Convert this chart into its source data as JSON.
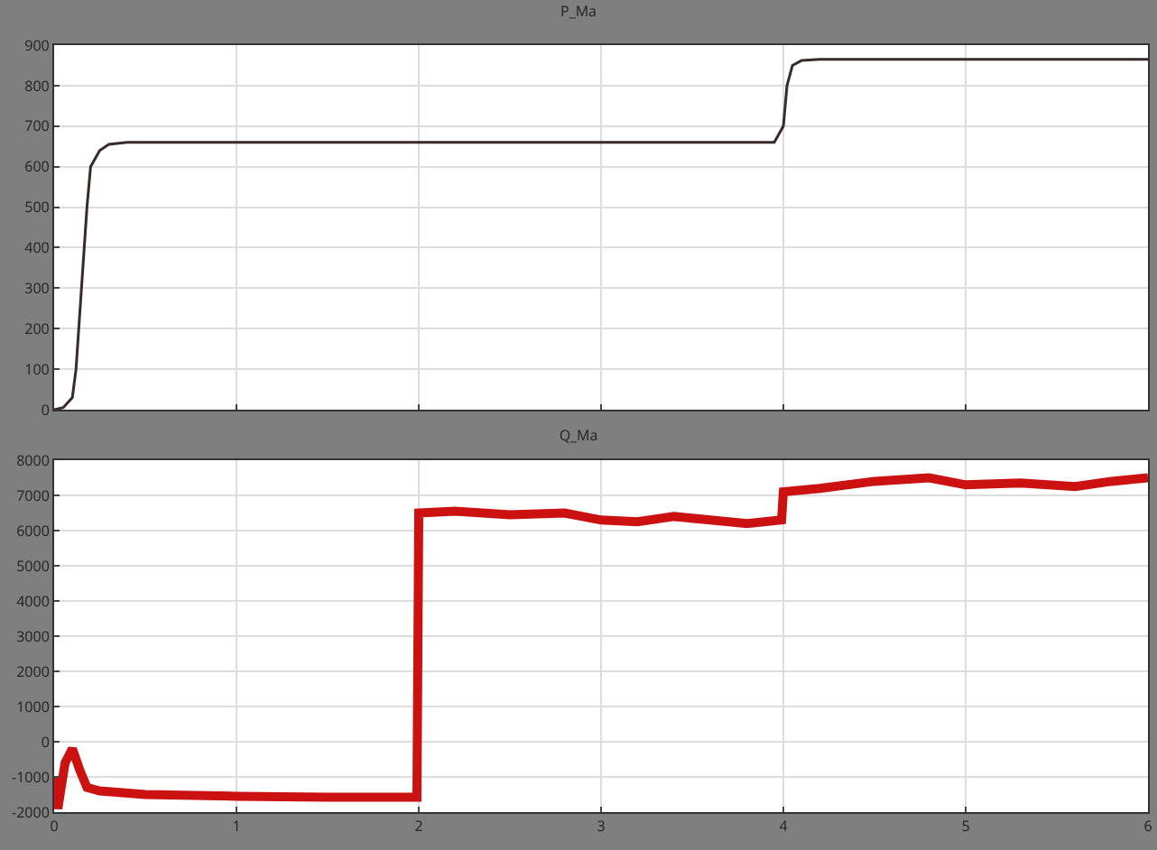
{
  "chart_data": [
    {
      "type": "line",
      "title": "P_Ma",
      "x": [
        0,
        0.05,
        0.1,
        0.12,
        0.15,
        0.18,
        0.2,
        0.25,
        0.3,
        0.4,
        1,
        2,
        3,
        3.95,
        4.0,
        4.02,
        4.05,
        4.1,
        4.2,
        5,
        6
      ],
      "series": [
        {
          "color": "#3a2a2a",
          "values": [
            0,
            5,
            30,
            100,
            300,
            500,
            600,
            640,
            655,
            660,
            660,
            660,
            660,
            660,
            700,
            800,
            850,
            862,
            865,
            865,
            865
          ]
        }
      ],
      "xlim": [
        0,
        6
      ],
      "xticks": [
        0,
        1,
        2,
        3,
        4,
        5,
        6
      ],
      "ylim": [
        0,
        900
      ],
      "yticks": [
        0,
        100,
        200,
        300,
        400,
        500,
        600,
        700,
        800,
        900
      ],
      "grid": true,
      "tick_labels": "y"
    },
    {
      "type": "line",
      "title": "Q_Ma",
      "x": [
        0,
        0.02,
        0.06,
        0.1,
        0.14,
        0.18,
        0.25,
        0.5,
        1,
        1.5,
        1.99,
        2.0,
        2.2,
        2.5,
        2.8,
        3.0,
        3.2,
        3.4,
        3.6,
        3.8,
        3.99,
        4.0,
        4.2,
        4.5,
        4.8,
        5.0,
        5.3,
        5.6,
        5.8,
        6
      ],
      "series": [
        {
          "color": "#cc1111",
          "values": [
            -1000,
            -1900,
            -600,
            -200,
            -800,
            -1300,
            -1400,
            -1500,
            -1550,
            -1580,
            -1580,
            6500,
            6550,
            6450,
            6500,
            6300,
            6250,
            6400,
            6300,
            6200,
            6300,
            7100,
            7200,
            7400,
            7500,
            7300,
            7350,
            7250,
            7400,
            7500
          ]
        }
      ],
      "xlim": [
        0,
        6
      ],
      "xticks": [
        0,
        1,
        2,
        3,
        4,
        5,
        6
      ],
      "ylim": [
        -2000,
        8000
      ],
      "yticks": [
        -2000,
        -1000,
        0,
        1000,
        2000,
        3000,
        4000,
        5000,
        6000,
        7000,
        8000
      ],
      "grid": true
    }
  ]
}
